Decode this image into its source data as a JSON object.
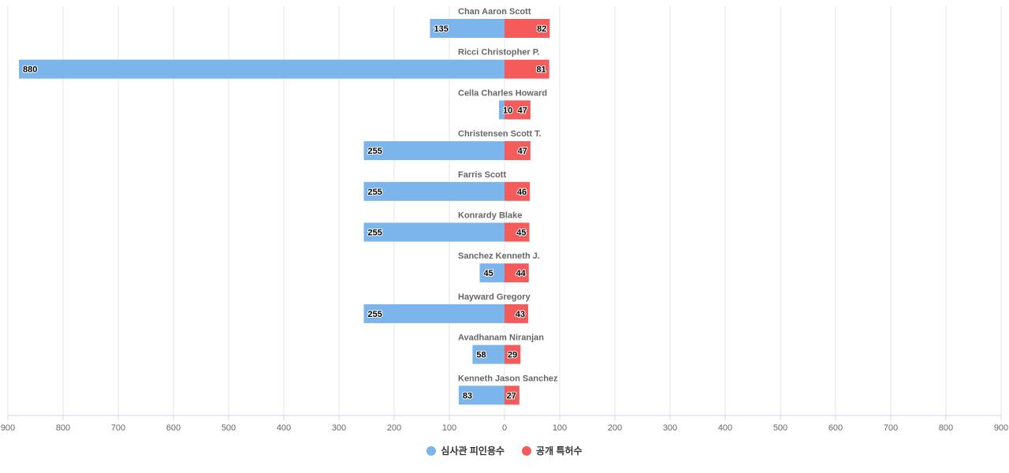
{
  "chart_data": {
    "type": "bar",
    "orientation": "horizontal-diverging",
    "title": "",
    "xlabel": "",
    "ylabel": "",
    "xlim": [
      -900,
      900
    ],
    "xticks": [
      "900",
      "800",
      "700",
      "600",
      "500",
      "400",
      "300",
      "200",
      "100",
      "0",
      "100",
      "200",
      "300",
      "400",
      "500",
      "600",
      "700",
      "800",
      "900"
    ],
    "grid": true,
    "legend_position": "bottom",
    "categories": [
      "Chan Aaron Scott",
      "Ricci Christopher P.",
      "Cella Charles Howard",
      "Christensen Scott T.",
      "Farris Scott",
      "Konrardy Blake",
      "Sanchez Kenneth J.",
      "Hayward Gregory",
      "Avadhanam Niranjan",
      "Kenneth Jason Sanchez"
    ],
    "series": [
      {
        "name": "심사관 피인용수",
        "color": "#7cb5ec",
        "side": "left",
        "values": [
          135,
          880,
          10,
          255,
          255,
          255,
          45,
          255,
          58,
          83
        ]
      },
      {
        "name": "공개 특허수",
        "color": "#f45b5b",
        "side": "right",
        "values": [
          82,
          81,
          47,
          47,
          46,
          45,
          44,
          43,
          29,
          27
        ]
      }
    ]
  }
}
